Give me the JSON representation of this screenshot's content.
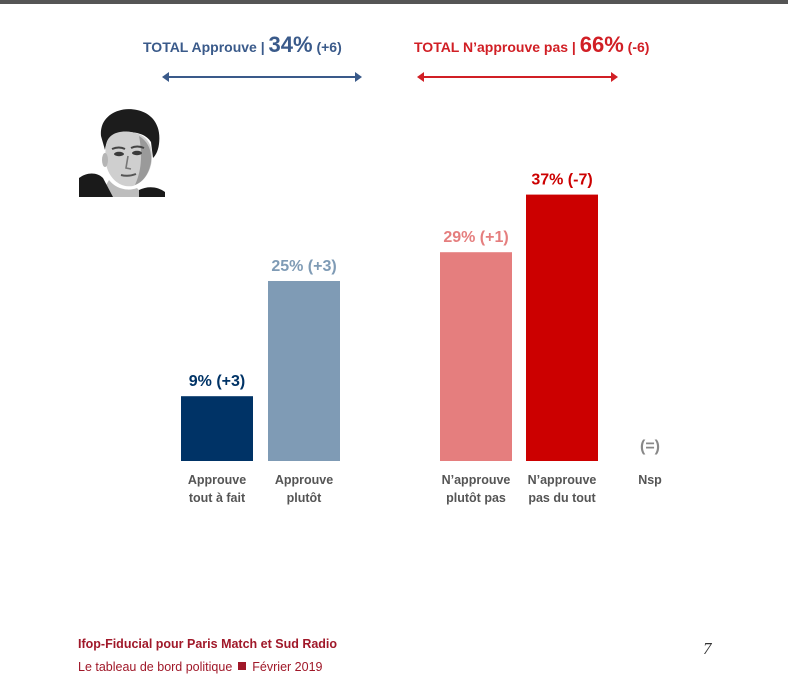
{
  "header": {
    "approve": {
      "label": "TOTAL Approuve |",
      "value": "34%",
      "change": "(+6)",
      "color": "#3a5a8a"
    },
    "disapprove": {
      "label": "TOTAL N’approuve pas |",
      "value": "66%",
      "change": "(-6)",
      "color": "#d11f25"
    }
  },
  "portrait": {
    "icon": "person-portrait"
  },
  "chart_data": {
    "type": "bar",
    "ylim": [
      0,
      40
    ],
    "grid": false,
    "categories": [
      [
        "Approuve",
        "tout à fait"
      ],
      [
        "Approuve",
        "plutôt"
      ],
      [
        "N’approuve",
        "plutôt pas"
      ],
      [
        "N’approuve",
        "pas du tout"
      ],
      [
        "Nsp"
      ]
    ],
    "values": [
      9,
      25,
      29,
      37,
      0
    ],
    "data_labels": [
      "9% (+3)",
      "25% (+3)",
      "29% (+1)",
      "37% (-7)",
      "(=)"
    ],
    "bar_colors": [
      "#003366",
      "#7f9bb5",
      "#e57e7e",
      "#cc0000",
      "#ffffff"
    ],
    "label_colors": [
      "#003366",
      "#7f9bb5",
      "#e57e7e",
      "#cc0000",
      "#888888"
    ]
  },
  "footer": {
    "source": "Ifop-Fiducial pour Paris Match et Sud Radio",
    "publication": "Le tableau de bord politique",
    "date": "Février 2019",
    "page_number": "7"
  }
}
